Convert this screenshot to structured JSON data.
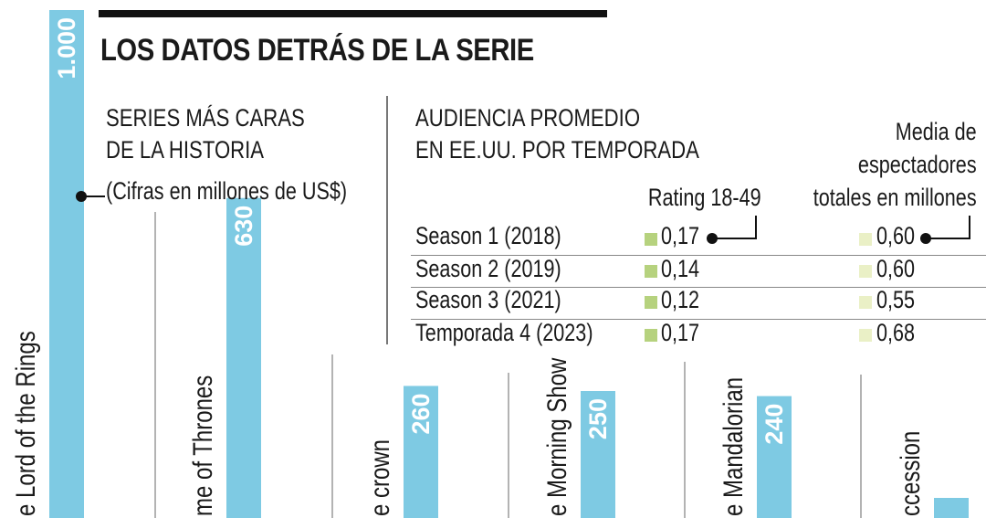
{
  "header": {
    "title": "LOS DATOS DETRÁS DE LA SERIE"
  },
  "chart_data": {
    "type": "bar",
    "subtitle_lines": [
      "SERIES MÁS CARAS",
      "DE LA HISTORIA"
    ],
    "note": "(Cifras en millones de US$)",
    "categories": [
      "The Lord of the Rings",
      "Game of Thrones",
      "The crown",
      "The Morning Show",
      "The Mandalorian",
      "Succession"
    ],
    "visible_category_text": [
      "e Lord of the Rings",
      "me of Thrones",
      "e crown",
      "e Morning Show",
      "e Mandalorian",
      "ccession"
    ],
    "values": [
      1000,
      630,
      260,
      250,
      240,
      null
    ],
    "value_labels": [
      "1.000",
      "630",
      "260",
      "250",
      "240",
      ""
    ],
    "bar_color": "#7ecae3",
    "label_color": "#ffffff",
    "orientation": "vertical, labels rotated"
  },
  "table": {
    "title_lines": [
      "AUDIENCIA PROMEDIO",
      "EN EE.UU. POR TEMPORADA"
    ],
    "col_rating": "Rating 18-49",
    "col_viewers_lines": [
      "Media de",
      "espectadores",
      "totales en millones"
    ],
    "rating_color": "#b6d27e",
    "viewers_color": "#eaf0c6",
    "rows": [
      {
        "season": "Season 1 (2018)",
        "rating": "0,17",
        "viewers": "0,60"
      },
      {
        "season": "Season 2 (2019)",
        "rating": "0,14",
        "viewers": "0,60"
      },
      {
        "season": "Season 3 (2021)",
        "rating": "0,12",
        "viewers": "0,55"
      },
      {
        "season": "Temporada 4 (2023)",
        "rating": "0,17",
        "viewers": "0,68"
      }
    ]
  }
}
